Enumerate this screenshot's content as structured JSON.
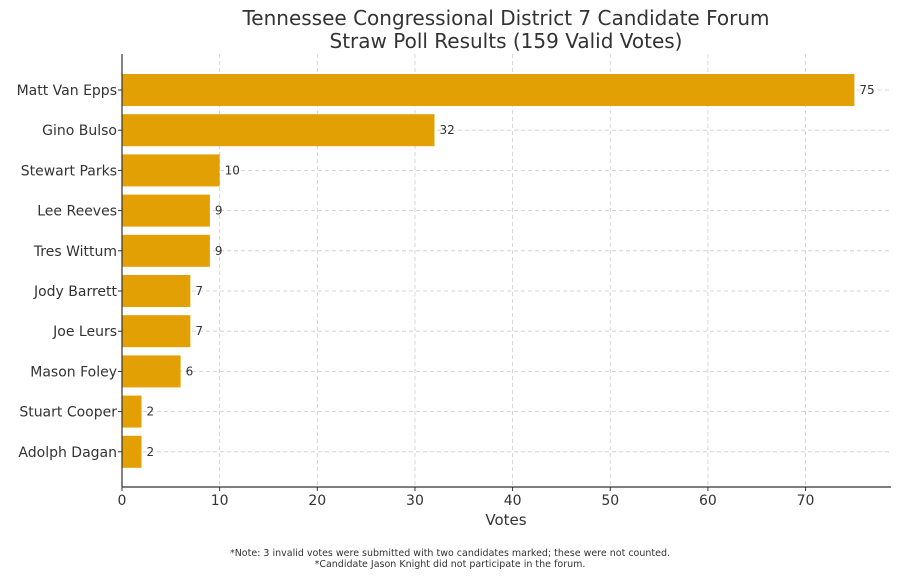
{
  "chart_data": {
    "type": "bar",
    "orientation": "horizontal",
    "title": "Tennessee Congressional District 7 Candidate Forum",
    "subtitle": "Straw Poll Results (159 Valid Votes)",
    "xlabel": "Votes",
    "ylabel": "",
    "xlim": [
      0,
      78.75
    ],
    "x_ticks": [
      0,
      10,
      20,
      30,
      40,
      50,
      60,
      70
    ],
    "grid": true,
    "bar_color": "#E3A005",
    "grid_color": "#cccccc",
    "text_color": "#333333",
    "categories": [
      "Matt Van Epps",
      "Gino Bulso",
      "Stewart Parks",
      "Lee Reeves",
      "Tres Wittum",
      "Jody Barrett",
      "Joe Leurs",
      "Mason Foley",
      "Stuart Cooper",
      "Adolph Dagan"
    ],
    "values": [
      75,
      32,
      10,
      9,
      9,
      7,
      7,
      6,
      2,
      2
    ],
    "data_labels": [
      "75",
      "32",
      "10",
      "9",
      "9",
      "7",
      "7",
      "6",
      "2",
      "2"
    ]
  },
  "footnotes": [
    "*Note: 3 invalid votes were submitted with two candidates marked; these were not counted.",
    "*Candidate Jason Knight did not participate in the forum."
  ]
}
